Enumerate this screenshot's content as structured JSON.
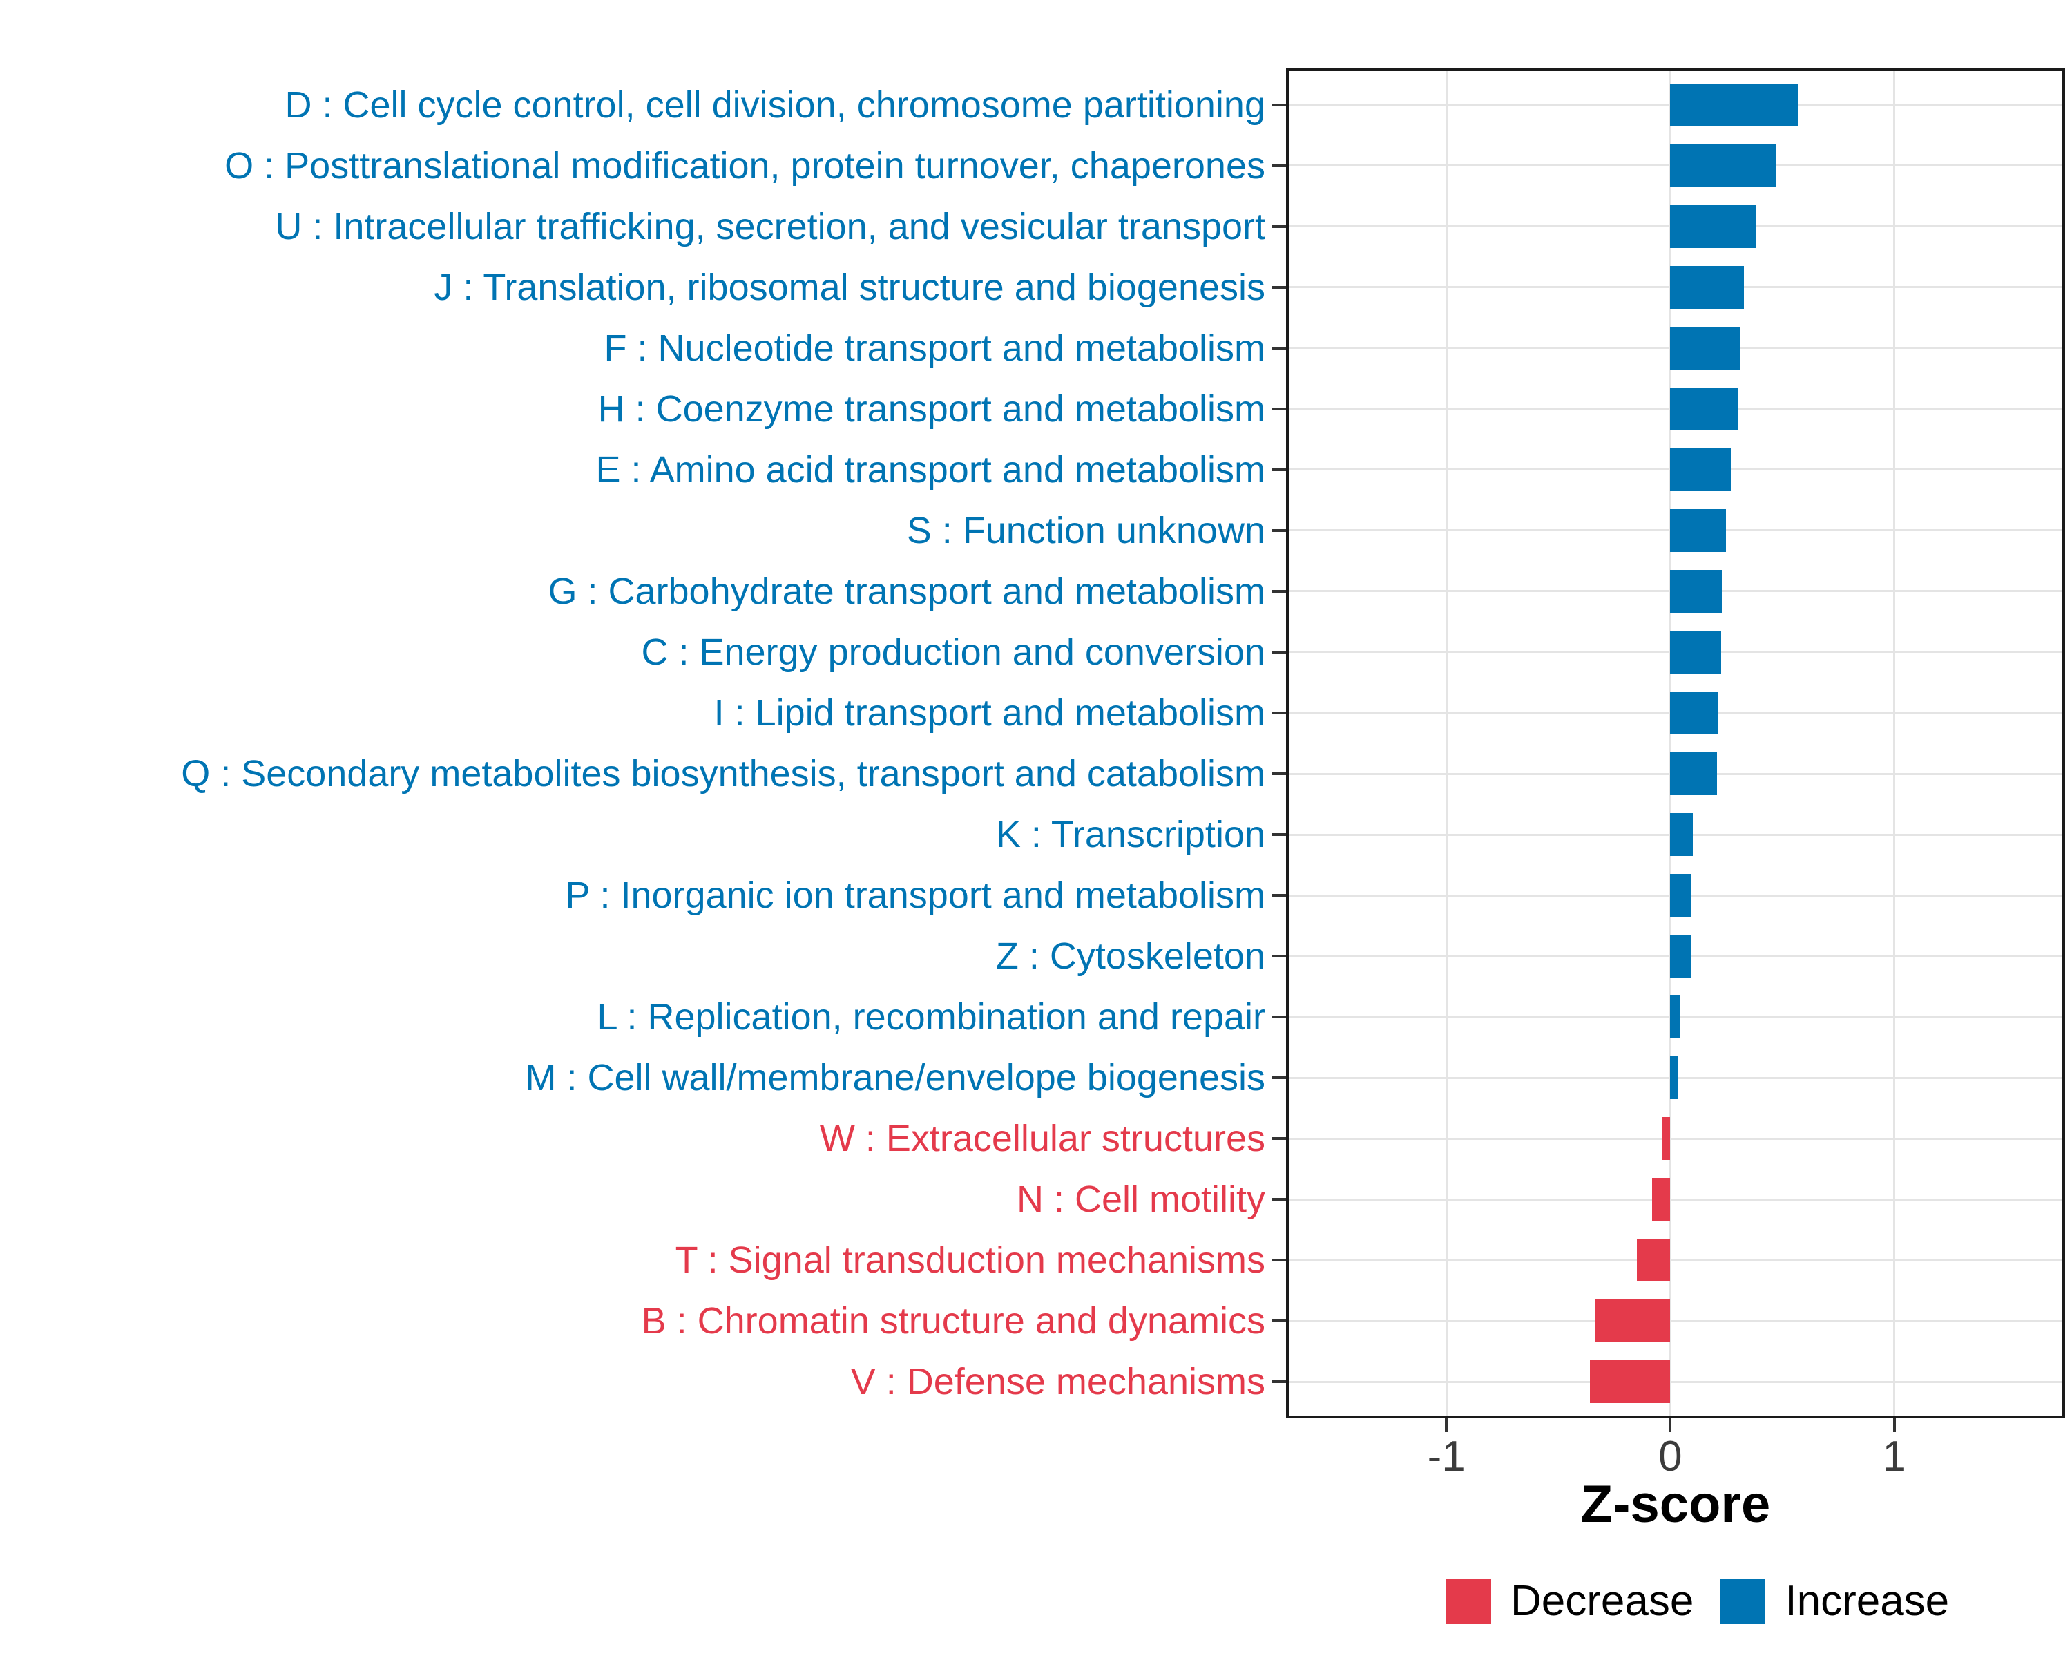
{
  "chart_data": {
    "type": "bar",
    "orientation": "horizontal",
    "title": "",
    "xlabel": "Z-score",
    "ylabel": "",
    "xlim": [
      -1.716,
      1.763
    ],
    "x_ticks": [
      {
        "value": -1,
        "label": "-1"
      },
      {
        "value": 0,
        "label": "0"
      },
      {
        "value": 1,
        "label": "1"
      }
    ],
    "grid": true,
    "legend_position": "bottom-right",
    "legend": [
      {
        "label": "Decrease",
        "color": "#E43A4B"
      },
      {
        "label": "Increase",
        "color": "#0074B3"
      }
    ],
    "bars": [
      {
        "label": "D : Cell cycle control, cell division, chromosome partitioning",
        "value": 0.57,
        "group": "Increase"
      },
      {
        "label": "O : Posttranslational modification, protein turnover, chaperones",
        "value": 0.47,
        "group": "Increase"
      },
      {
        "label": "U : Intracellular trafficking, secretion, and vesicular transport",
        "value": 0.38,
        "group": "Increase"
      },
      {
        "label": "J : Translation, ribosomal structure and biogenesis",
        "value": 0.33,
        "group": "Increase"
      },
      {
        "label": "F : Nucleotide transport and metabolism",
        "value": 0.31,
        "group": "Increase"
      },
      {
        "label": "H : Coenzyme transport and metabolism",
        "value": 0.3,
        "group": "Increase"
      },
      {
        "label": "E : Amino acid transport and metabolism",
        "value": 0.27,
        "group": "Increase"
      },
      {
        "label": "S : Function unknown",
        "value": 0.25,
        "group": "Increase"
      },
      {
        "label": "G : Carbohydrate transport and metabolism",
        "value": 0.23,
        "group": "Increase"
      },
      {
        "label": "C : Energy production and conversion",
        "value": 0.228,
        "group": "Increase"
      },
      {
        "label": "I : Lipid transport and metabolism",
        "value": 0.215,
        "group": "Increase"
      },
      {
        "label": "Q : Secondary metabolites biosynthesis, transport and catabolism",
        "value": 0.21,
        "group": "Increase"
      },
      {
        "label": "K : Transcription",
        "value": 0.1,
        "group": "Increase"
      },
      {
        "label": "P : Inorganic ion transport and metabolism",
        "value": 0.095,
        "group": "Increase"
      },
      {
        "label": "Z : Cytoskeleton",
        "value": 0.09,
        "group": "Increase"
      },
      {
        "label": "L : Replication, recombination and repair",
        "value": 0.045,
        "group": "Increase"
      },
      {
        "label": "M : Cell wall/membrane/envelope biogenesis",
        "value": 0.035,
        "group": "Increase"
      },
      {
        "label": "W : Extracellular structures",
        "value": -0.035,
        "group": "Decrease"
      },
      {
        "label": "N : Cell motility",
        "value": -0.08,
        "group": "Decrease"
      },
      {
        "label": "T : Signal transduction mechanisms",
        "value": -0.15,
        "group": "Decrease"
      },
      {
        "label": "B : Chromatin structure and dynamics",
        "value": -0.335,
        "group": "Decrease"
      },
      {
        "label": "V : Defense mechanisms",
        "value": -0.36,
        "group": "Decrease"
      }
    ]
  },
  "colors": {
    "increase": "#0074B3",
    "decrease": "#E43A4B",
    "grid": "#E4E4E4",
    "panel_border": "#1A1A1A",
    "tick": "#333333",
    "tick_label": "#3C3C3C",
    "axis_title": "#000000",
    "background": "#FFFFFF"
  }
}
